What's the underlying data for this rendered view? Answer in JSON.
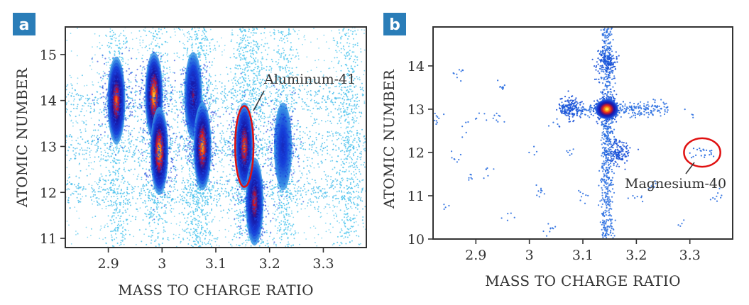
{
  "chart_data": [
    {
      "panel": "a",
      "type": "heatmap",
      "xlabel": "MASS TO CHARGE RATIO",
      "ylabel": "ATOMIC NUMBER",
      "xlim": [
        2.82,
        3.38
      ],
      "ylim": [
        10.8,
        15.6
      ],
      "xticks": [
        2.9,
        3.0,
        3.1,
        3.2,
        3.3
      ],
      "xtick_labels": [
        "2.9",
        "3",
        "3.1",
        "3.2",
        "3.3"
      ],
      "yticks": [
        11,
        12,
        13,
        14,
        15
      ],
      "ytick_labels": [
        "11",
        "12",
        "13",
        "14",
        "15"
      ],
      "clusters": [
        {
          "x": 2.915,
          "y": 14.0,
          "peak": 0.8
        },
        {
          "x": 2.985,
          "y": 14.1,
          "peak": 0.95
        },
        {
          "x": 2.995,
          "y": 12.9,
          "peak": 0.95
        },
        {
          "x": 3.058,
          "y": 14.1,
          "peak": 0.55
        },
        {
          "x": 3.075,
          "y": 13.0,
          "peak": 0.9
        },
        {
          "x": 3.153,
          "y": 13.0,
          "peak": 0.8
        },
        {
          "x": 3.172,
          "y": 11.8,
          "peak": 0.7
        },
        {
          "x": 3.225,
          "y": 13.0,
          "peak": 0.3
        }
      ],
      "highlight": {
        "label": "Aluminum-41",
        "x": 3.153,
        "y": 13.0,
        "rx": 0.017,
        "ry": 0.88
      }
    },
    {
      "panel": "b",
      "type": "scatter",
      "xlabel": "MASS TO CHARGE RATIO",
      "ylabel": "ATOMIC NUMBER",
      "xlim": [
        2.82,
        3.38
      ],
      "ylim": [
        10.0,
        14.9
      ],
      "xticks": [
        2.9,
        3.0,
        3.1,
        3.2,
        3.3
      ],
      "xtick_labels": [
        "2.9",
        "3",
        "3.1",
        "3.2",
        "3.3"
      ],
      "yticks": [
        10,
        11,
        12,
        13,
        14
      ],
      "ytick_labels": [
        "10",
        "11",
        "12",
        "13",
        "14"
      ],
      "clusters": [
        {
          "x": 3.145,
          "y": 13.0,
          "peak": 1.0
        },
        {
          "x": 3.075,
          "y": 13.0,
          "peak": 0.3
        },
        {
          "x": 3.165,
          "y": 12.0,
          "peak": 0.35
        },
        {
          "x": 3.143,
          "y": 14.1,
          "peak": 0.3
        }
      ],
      "highlight": {
        "label": "Magnesium-40",
        "x": 3.323,
        "y": 12.0,
        "rx": 0.034,
        "ry": 0.33
      }
    }
  ],
  "colors": {
    "frame": "#333333",
    "badge": "#2a7db8",
    "highlight": "#e01010",
    "sparse": "#55c8ef",
    "dense_blue": "#0e2fd0",
    "scatter_points": "#2a6ee0"
  }
}
